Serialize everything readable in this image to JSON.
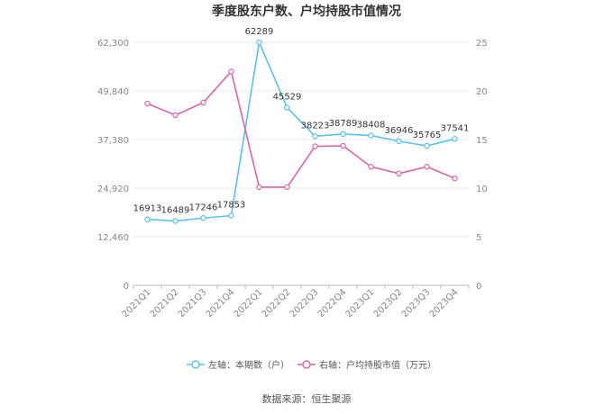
{
  "chart_data": {
    "type": "line",
    "title": "季度股东户数、户均持股市值情况",
    "categories": [
      "2021Q1",
      "2021Q2",
      "2021Q3",
      "2021Q4",
      "2022Q1",
      "2022Q2",
      "2022Q3",
      "2022Q4",
      "2023Q1",
      "2023Q2",
      "2023Q3",
      "2023Q4"
    ],
    "left_axis": {
      "ticks": [
        "0",
        "12,460",
        "24,920",
        "37,380",
        "49,840",
        "62,300"
      ],
      "min": 0,
      "max": 62300
    },
    "right_axis": {
      "ticks": [
        "0",
        "5",
        "10",
        "15",
        "20",
        "25"
      ],
      "min": 0,
      "max": 25
    },
    "series": [
      {
        "name": "左轴：本期数（户）",
        "axis": "left",
        "color": "#5bc0eb",
        "values": [
          16913,
          16489,
          17246,
          17853,
          62289,
          45529,
          38223,
          38789,
          38408,
          36946,
          35765,
          37541
        ],
        "labels": [
          "16913",
          "16489",
          "17246",
          "17853",
          "62289",
          "45529",
          "38223",
          "38789",
          "38408",
          "36946",
          "35765",
          "37541"
        ]
      },
      {
        "name": "右轴：户均持股市值（万元）",
        "axis": "right",
        "color": "#d966a8",
        "values": [
          18.7,
          17.5,
          18.8,
          22.0,
          10.1,
          10.1,
          14.3,
          14.35,
          12.2,
          11.5,
          12.2,
          11.0
        ]
      }
    ],
    "grid": true,
    "legend_position": "bottom"
  },
  "footer": {
    "source": "数据来源：恒生聚源"
  }
}
